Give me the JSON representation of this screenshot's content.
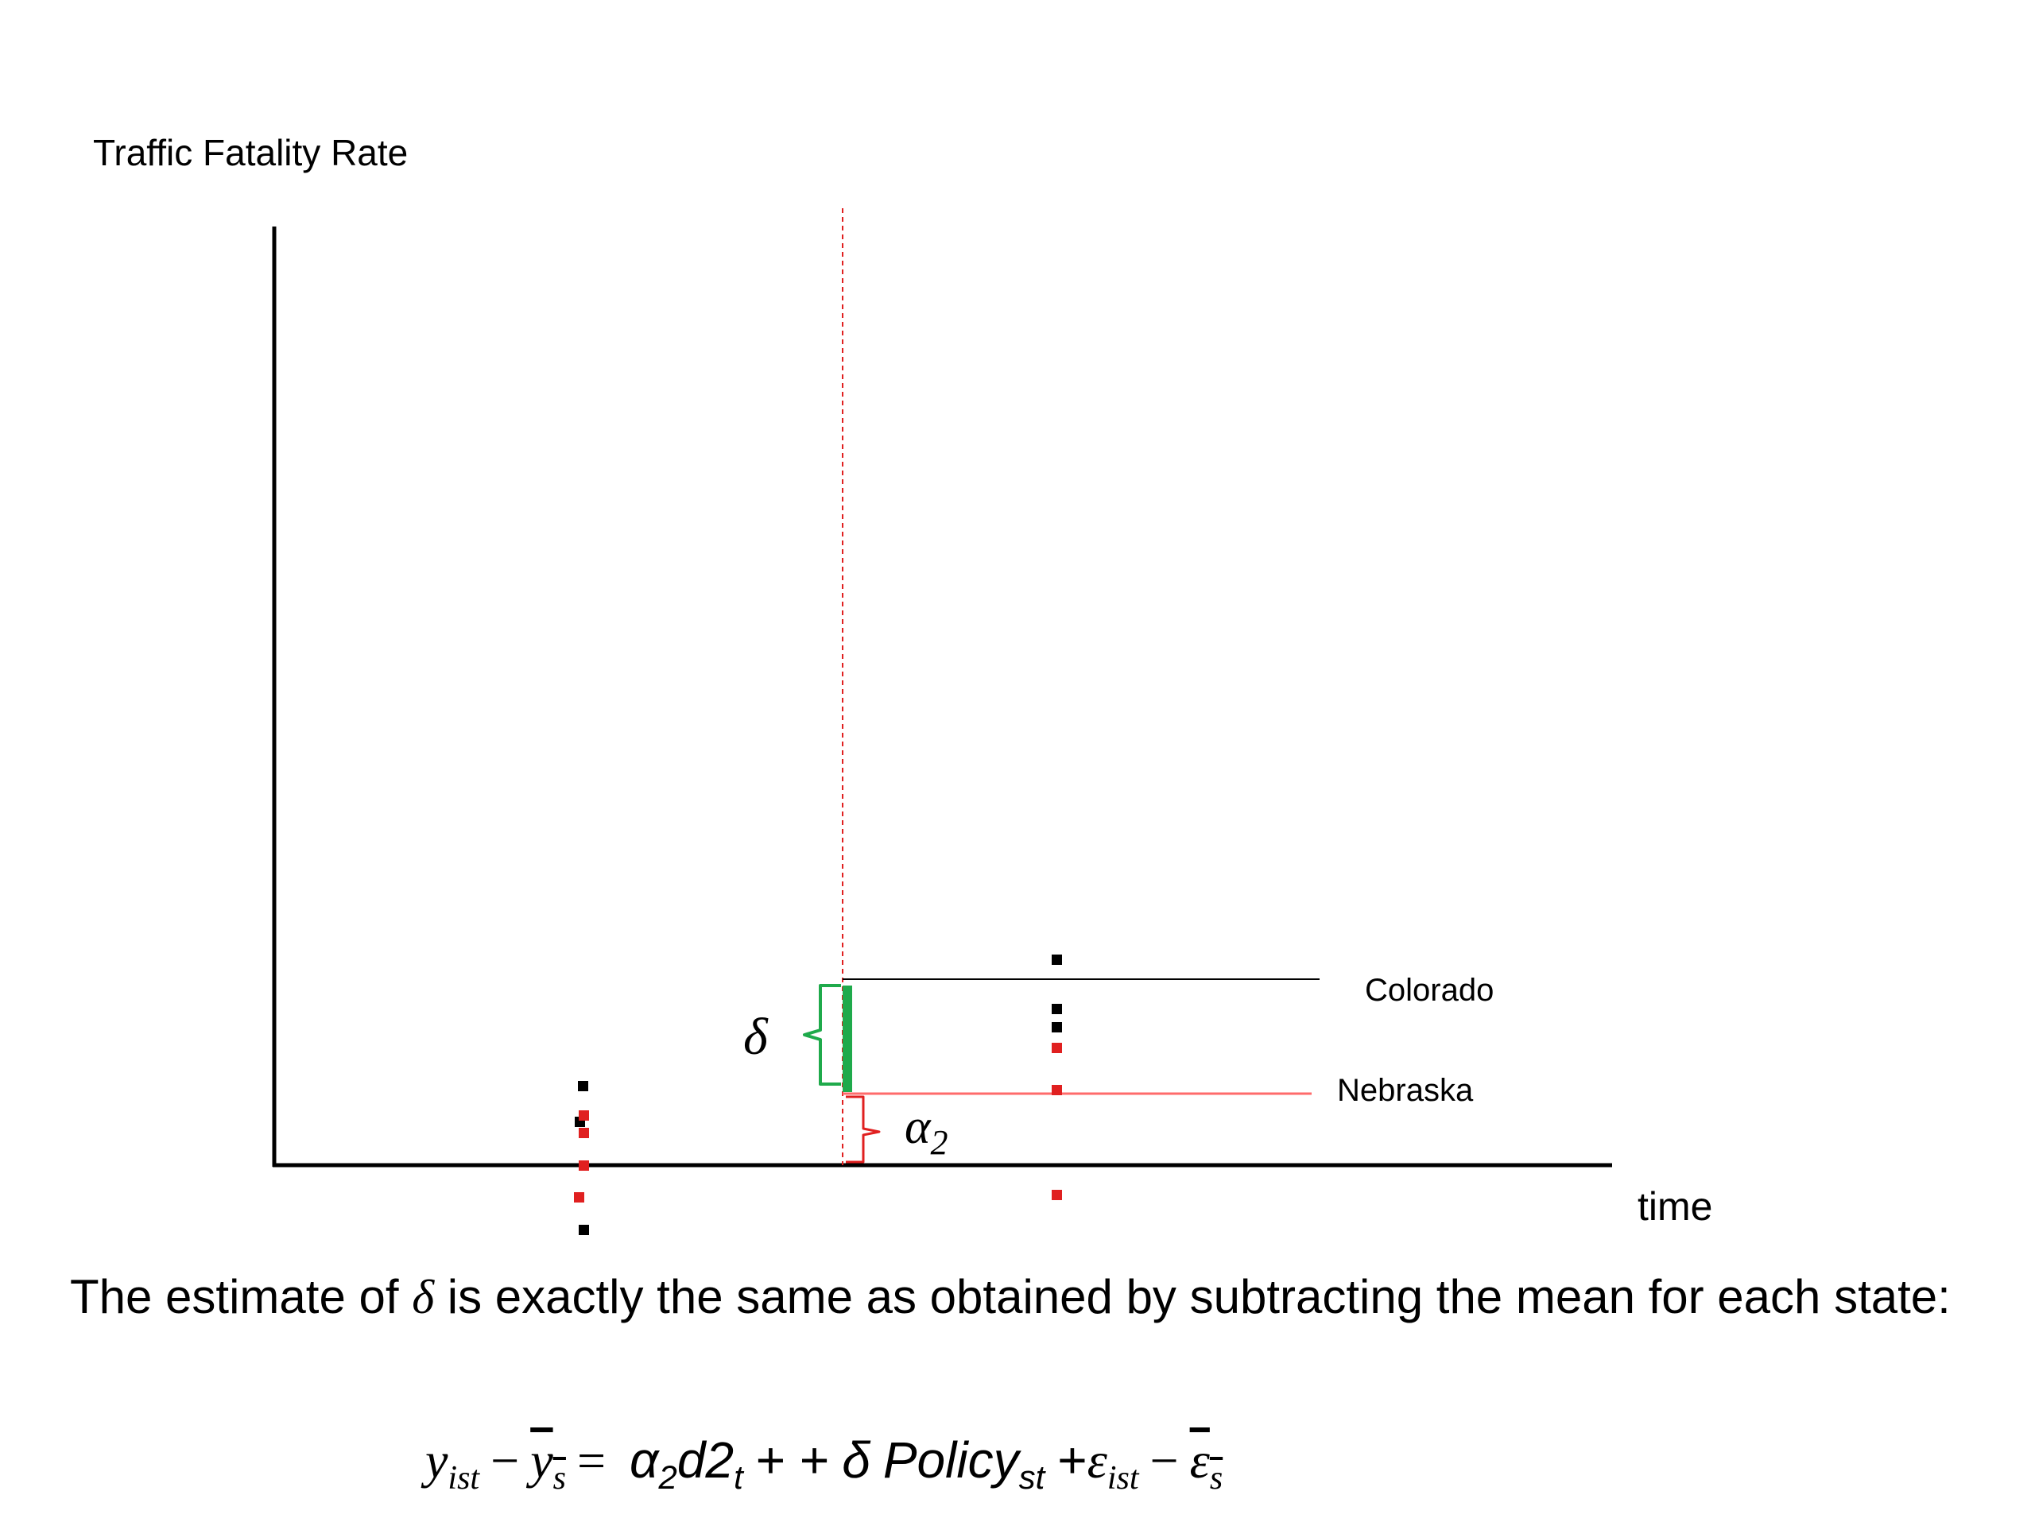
{
  "diagram": {
    "y_axis_label": "Traffic Fatality Rate",
    "x_axis_label": "time",
    "series": [
      {
        "name": "Colorado",
        "color": "#000000"
      },
      {
        "name": "Nebraska",
        "color": "#ff6b6b"
      }
    ],
    "policy_line_color": "#e02020",
    "delta_bar_color": "#1faa4b",
    "alpha_brace_color": "#e02020",
    "delta_symbol": "δ",
    "alpha_symbol": "α",
    "alpha_subscript": "2"
  },
  "caption": {
    "part1": "The estimate of ",
    "symbol": "δ",
    "part2": " is exactly the same as obtained by subtracting the mean for each state:"
  },
  "equation": {
    "lhs_y": "y",
    "lhs_y_sub": "ist",
    "minus1": "−",
    "ybar": "y",
    "ybar_sub": "s",
    "equals": "=",
    "alpha": "α",
    "alpha_sub": "2",
    "d2": "d2",
    "d2_sub": "t",
    "plus_plus": "+ +",
    "delta": "δ",
    "policy": "Policy",
    "policy_sub": "st",
    "plus": "+",
    "eps": "ε",
    "eps_sub": "ist",
    "minus2": "−",
    "epsbar": "ε",
    "epsbar_sub": "s"
  }
}
